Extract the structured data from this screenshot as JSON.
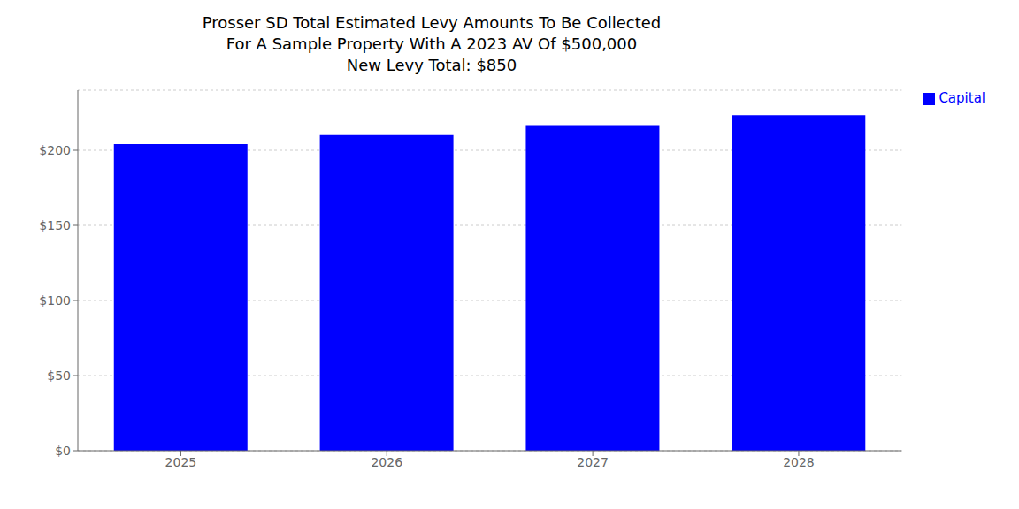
{
  "chart_data": {
    "type": "bar",
    "title": "Prosser SD Total Estimated Levy Amounts To Be Collected\nFor A Sample Property With A 2023 AV Of $500,000\nNew Levy Total: $850",
    "categories": [
      "2025",
      "2026",
      "2027",
      "2028"
    ],
    "series": [
      {
        "name": "Capital",
        "color": "#0000ff",
        "values": [
          204.17,
          210.21,
          216.17,
          223.45
        ]
      }
    ],
    "ylim": [
      0,
      240
    ],
    "yticks": [
      {
        "value": 0,
        "label": "$0"
      },
      {
        "value": 50,
        "label": "$50"
      },
      {
        "value": 100,
        "label": "$100"
      },
      {
        "value": 150,
        "label": "$150"
      },
      {
        "value": 200,
        "label": "$200"
      }
    ],
    "grid": true,
    "legend": "right"
  }
}
